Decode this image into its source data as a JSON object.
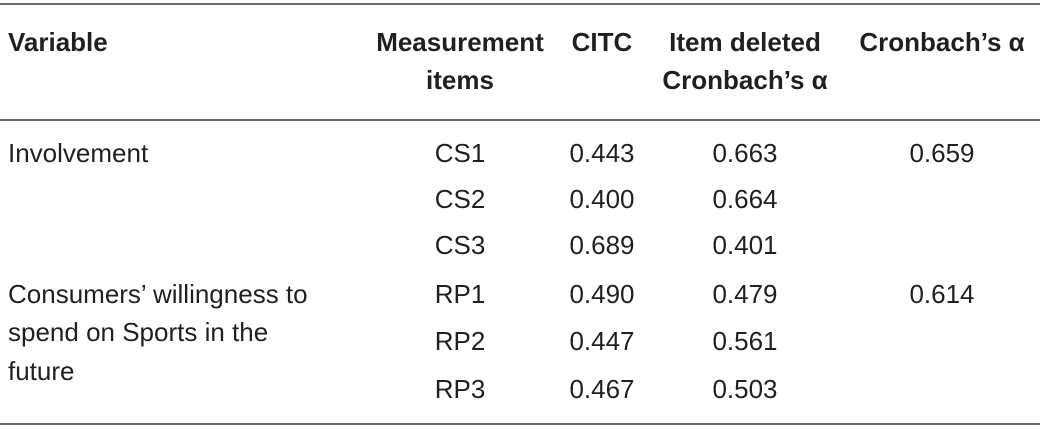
{
  "table": {
    "headers": {
      "variable": "Variable",
      "measurement_line1": "Measurement",
      "measurement_line2": "items",
      "citc": "CITC",
      "item_deleted_line1": "Item deleted",
      "item_deleted_line2": "Cronbach’s α",
      "cronbach": "Cronbach’s α"
    },
    "groups": [
      {
        "variable_lines": [
          "Involvement"
        ],
        "cronbach": "0.659",
        "rows": [
          {
            "item": "CS1",
            "citc": "0.443",
            "deleted": "0.663"
          },
          {
            "item": "CS2",
            "citc": "0.400",
            "deleted": "0.664"
          },
          {
            "item": "CS3",
            "citc": "0.689",
            "deleted": "0.401"
          }
        ]
      },
      {
        "variable_lines": [
          "Consumers’ willingness to",
          "spend on Sports in the",
          "future"
        ],
        "cronbach": "0.614",
        "rows": [
          {
            "item": "RP1",
            "citc": "0.490",
            "deleted": "0.479"
          },
          {
            "item": "RP2",
            "citc": "0.447",
            "deleted": "0.561"
          },
          {
            "item": "RP3",
            "citc": "0.467",
            "deleted": "0.503"
          }
        ]
      }
    ]
  }
}
